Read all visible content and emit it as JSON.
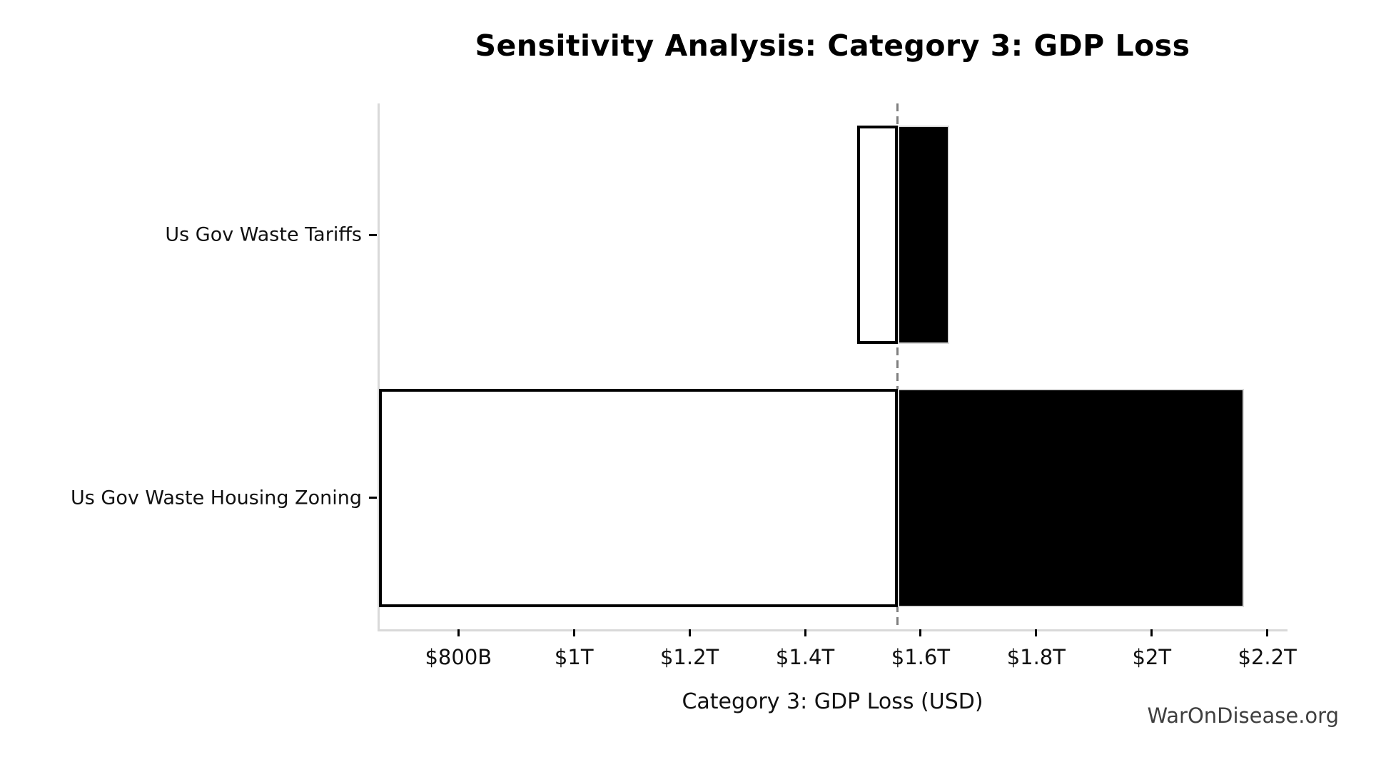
{
  "chart_data": {
    "type": "bar",
    "orientation": "horizontal",
    "subtype": "tornado-sensitivity",
    "title": "Sensitivity Analysis: Category 3: GDP Loss",
    "xlabel": "Category 3: GDP Loss (USD)",
    "watermark": "WarOnDisease.org",
    "unit": "USD trillions",
    "xlim": [
      0.66,
      2.235
    ],
    "x_ticks": [
      {
        "value": 0.8,
        "label": "$800B"
      },
      {
        "value": 1.0,
        "label": "$1T"
      },
      {
        "value": 1.2,
        "label": "$1.2T"
      },
      {
        "value": 1.4,
        "label": "$1.4T"
      },
      {
        "value": 1.6,
        "label": "$1.6T"
      },
      {
        "value": 1.8,
        "label": "$1.8T"
      },
      {
        "value": 2.0,
        "label": "$2T"
      },
      {
        "value": 2.2,
        "label": "$2.2T"
      }
    ],
    "baseline_value": 1.56,
    "bars": [
      {
        "category": "Us Gov Waste Tariffs",
        "low": 1.49,
        "high": 1.65
      },
      {
        "category": "Us Gov Waste Housing Zoning",
        "low": 0.663,
        "high": 2.16
      }
    ],
    "bar_height_fraction": 0.83,
    "legend": "none",
    "grid": "off",
    "colors": {
      "low_fill": "#ffffff",
      "low_edge": "#000000",
      "high_fill": "#000000",
      "high_edge": "#d9d9d9",
      "baseline": "#7f7f7f",
      "spine": "#d9d9d9",
      "tick": "#000000",
      "text": "#111111",
      "watermark": "#3f3f3f"
    }
  }
}
